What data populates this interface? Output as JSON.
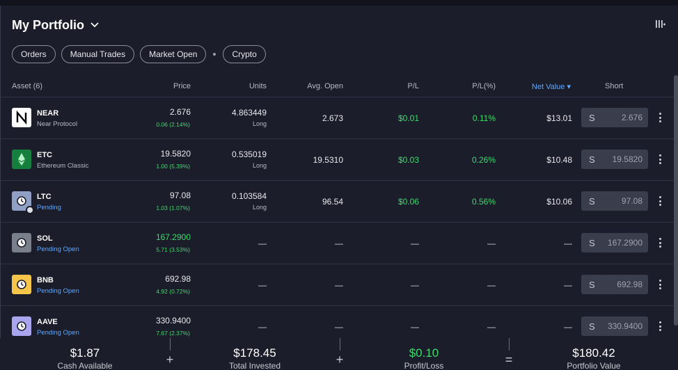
{
  "header": {
    "title": "My Portfolio"
  },
  "filters": {
    "orders": "Orders",
    "manual_trades": "Manual Trades",
    "market_open": "Market Open",
    "crypto": "Crypto"
  },
  "columns": {
    "asset": "Asset (6)",
    "price": "Price",
    "units": "Units",
    "avg_open": "Avg. Open",
    "pl": "P/L",
    "pl_pct": "P/L(%)",
    "net_value": "Net Value ▾",
    "short": "Short"
  },
  "rows": [
    {
      "symbol": "NEAR",
      "name": "Near Protocol",
      "price": "2.676",
      "change": "0.06 (2.14%)",
      "units": "4.863449",
      "units_sub": "Long",
      "avg_open": "2.673",
      "pl": "$0.01",
      "pl_pct": "0.11%",
      "net": "$13.01",
      "short_label": "S",
      "short_value": "2.676",
      "logo_icon": "near-logo-icon"
    },
    {
      "symbol": "ETC",
      "name": "Ethereum Classic",
      "price": "19.5820",
      "change": "1.00 (5.39%)",
      "units": "0.535019",
      "units_sub": "Long",
      "avg_open": "19.5310",
      "pl": "$0.03",
      "pl_pct": "0.26%",
      "net": "$10.48",
      "short_label": "S",
      "short_value": "19.5820",
      "logo_icon": "etc-logo-icon"
    },
    {
      "symbol": "LTC",
      "name": "Pending",
      "price": "97.08",
      "change": "1.03 (1.07%)",
      "units": "0.103584",
      "units_sub": "Long",
      "avg_open": "96.54",
      "pl": "$0.06",
      "pl_pct": "0.56%",
      "net": "$10.06",
      "short_label": "S",
      "short_value": "97.08",
      "logo_icon": "pending-clock-icon"
    },
    {
      "symbol": "SOL",
      "name": "Pending Open",
      "price": "167.2900",
      "change": "5.71 (3.53%)",
      "units": "—",
      "units_sub": "",
      "avg_open": "—",
      "pl": "—",
      "pl_pct": "—",
      "net": "—",
      "short_label": "S",
      "short_value": "167.2900",
      "logo_icon": "pending-clock-icon"
    },
    {
      "symbol": "BNB",
      "name": "Pending Open",
      "price": "692.98",
      "change": "4.92 (0.72%)",
      "units": "—",
      "units_sub": "",
      "avg_open": "—",
      "pl": "—",
      "pl_pct": "—",
      "net": "—",
      "short_label": "S",
      "short_value": "692.98",
      "logo_icon": "pending-clock-icon"
    },
    {
      "symbol": "AAVE",
      "name": "Pending Open",
      "price": "330.9400",
      "change": "7.67 (2.37%)",
      "units": "—",
      "units_sub": "",
      "avg_open": "—",
      "pl": "—",
      "pl_pct": "—",
      "net": "—",
      "short_label": "S",
      "short_value": "330.9400",
      "logo_icon": "pending-clock-icon"
    }
  ],
  "footer": {
    "cash_value": "$1.87",
    "cash_label": "Cash Available",
    "invested_value": "$178.45",
    "invested_label": "Total Invested",
    "pl_value": "$0.10",
    "pl_label": "Profit/Loss",
    "portfolio_value": "$180.42",
    "portfolio_label": "Portfolio Value",
    "op_plus": "+",
    "op_equals": "="
  },
  "colors": {
    "background": "#1b1d2a",
    "positive": "#3ddc6a",
    "accent": "#5fa8ff"
  }
}
